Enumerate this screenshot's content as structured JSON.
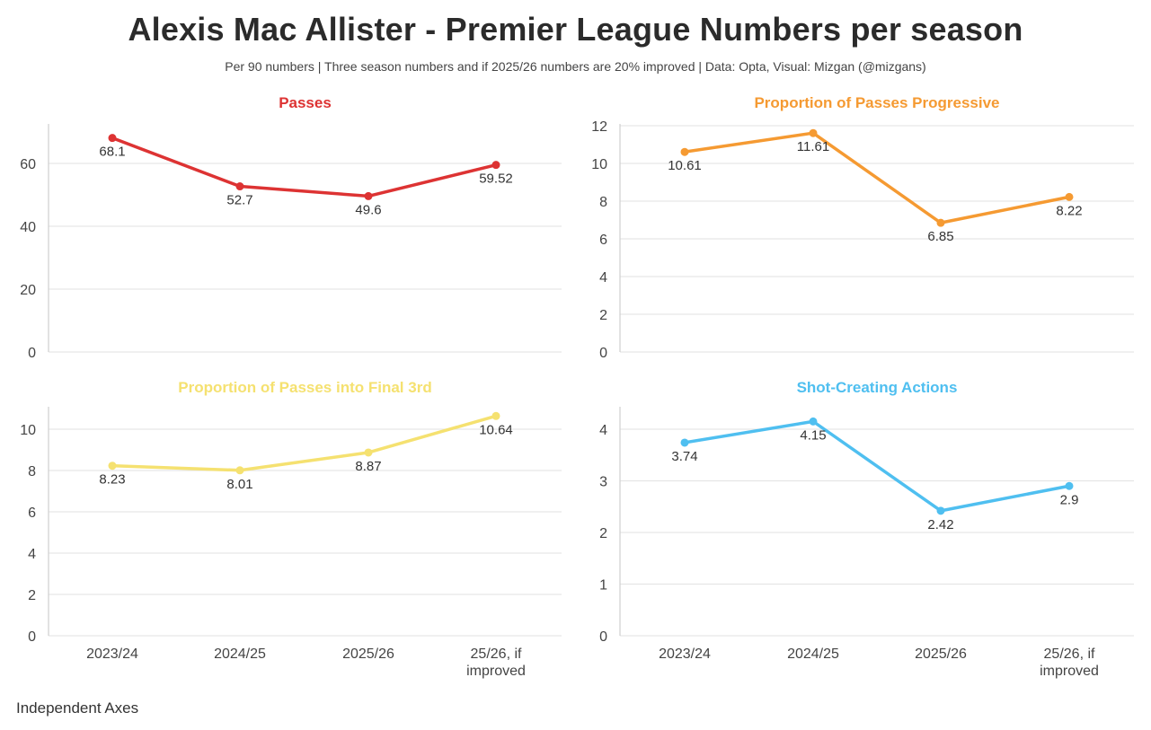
{
  "title": "Alexis Mac Allister - Premier League Numbers per season",
  "subtitle": "Per 90 numbers | Three season numbers and if 2025/26 numbers are 20% improved | Data: Opta, Visual: Mizgan (@mizgans)",
  "footer": "Independent Axes",
  "categories": [
    "2023/24",
    "2024/25",
    "2025/26",
    "25/26, if improved"
  ],
  "category_display": [
    [
      "2023/24"
    ],
    [
      "2024/25"
    ],
    [
      "2025/26"
    ],
    [
      "25/26, if",
      "improved"
    ]
  ],
  "chart_data": [
    {
      "type": "line",
      "title": "Passes",
      "color": "#dd3333",
      "categories": [
        "2023/24",
        "2024/25",
        "2025/26",
        "25/26, if improved"
      ],
      "values": [
        68.1,
        52.7,
        49.6,
        59.52
      ],
      "labels": [
        "68.1",
        "52.7",
        "49.6",
        "59.52"
      ],
      "ylim": [
        0,
        72
      ],
      "yticks": [
        0,
        20,
        40,
        60
      ],
      "xlabel": "",
      "ylabel": "",
      "grid": true
    },
    {
      "type": "line",
      "title": "Proportion of Passes Progressive",
      "color": "#f59a32",
      "categories": [
        "2023/24",
        "2024/25",
        "2025/26",
        "25/26, if improved"
      ],
      "values": [
        10.61,
        11.61,
        6.85,
        8.22
      ],
      "labels": [
        "10.61",
        "11.61",
        "6.85",
        "8.22"
      ],
      "ylim": [
        0,
        12
      ],
      "yticks": [
        0,
        2,
        4,
        6,
        8,
        10,
        12
      ],
      "xlabel": "",
      "ylabel": "",
      "grid": true
    },
    {
      "type": "line",
      "title": "Proportion of Passes into Final 3rd",
      "color": "#f5e170",
      "categories": [
        "2023/24",
        "2024/25",
        "2025/26",
        "25/26, if improved"
      ],
      "values": [
        8.23,
        8.01,
        8.87,
        10.64
      ],
      "labels": [
        "8.23",
        "8.01",
        "8.87",
        "10.64"
      ],
      "ylim": [
        0,
        11
      ],
      "yticks": [
        0,
        2,
        4,
        6,
        8,
        10
      ],
      "xlabel": "",
      "ylabel": "",
      "grid": true
    },
    {
      "type": "line",
      "title": "Shot-Creating Actions",
      "color": "#4fbff0",
      "categories": [
        "2023/24",
        "2024/25",
        "2025/26",
        "25/26, if improved"
      ],
      "values": [
        3.74,
        4.15,
        2.42,
        2.9
      ],
      "labels": [
        "3.74",
        "4.15",
        "2.42",
        "2.9"
      ],
      "ylim": [
        0,
        4.4
      ],
      "yticks": [
        0,
        1,
        2,
        3,
        4
      ],
      "xlabel": "",
      "ylabel": "",
      "grid": true
    }
  ]
}
